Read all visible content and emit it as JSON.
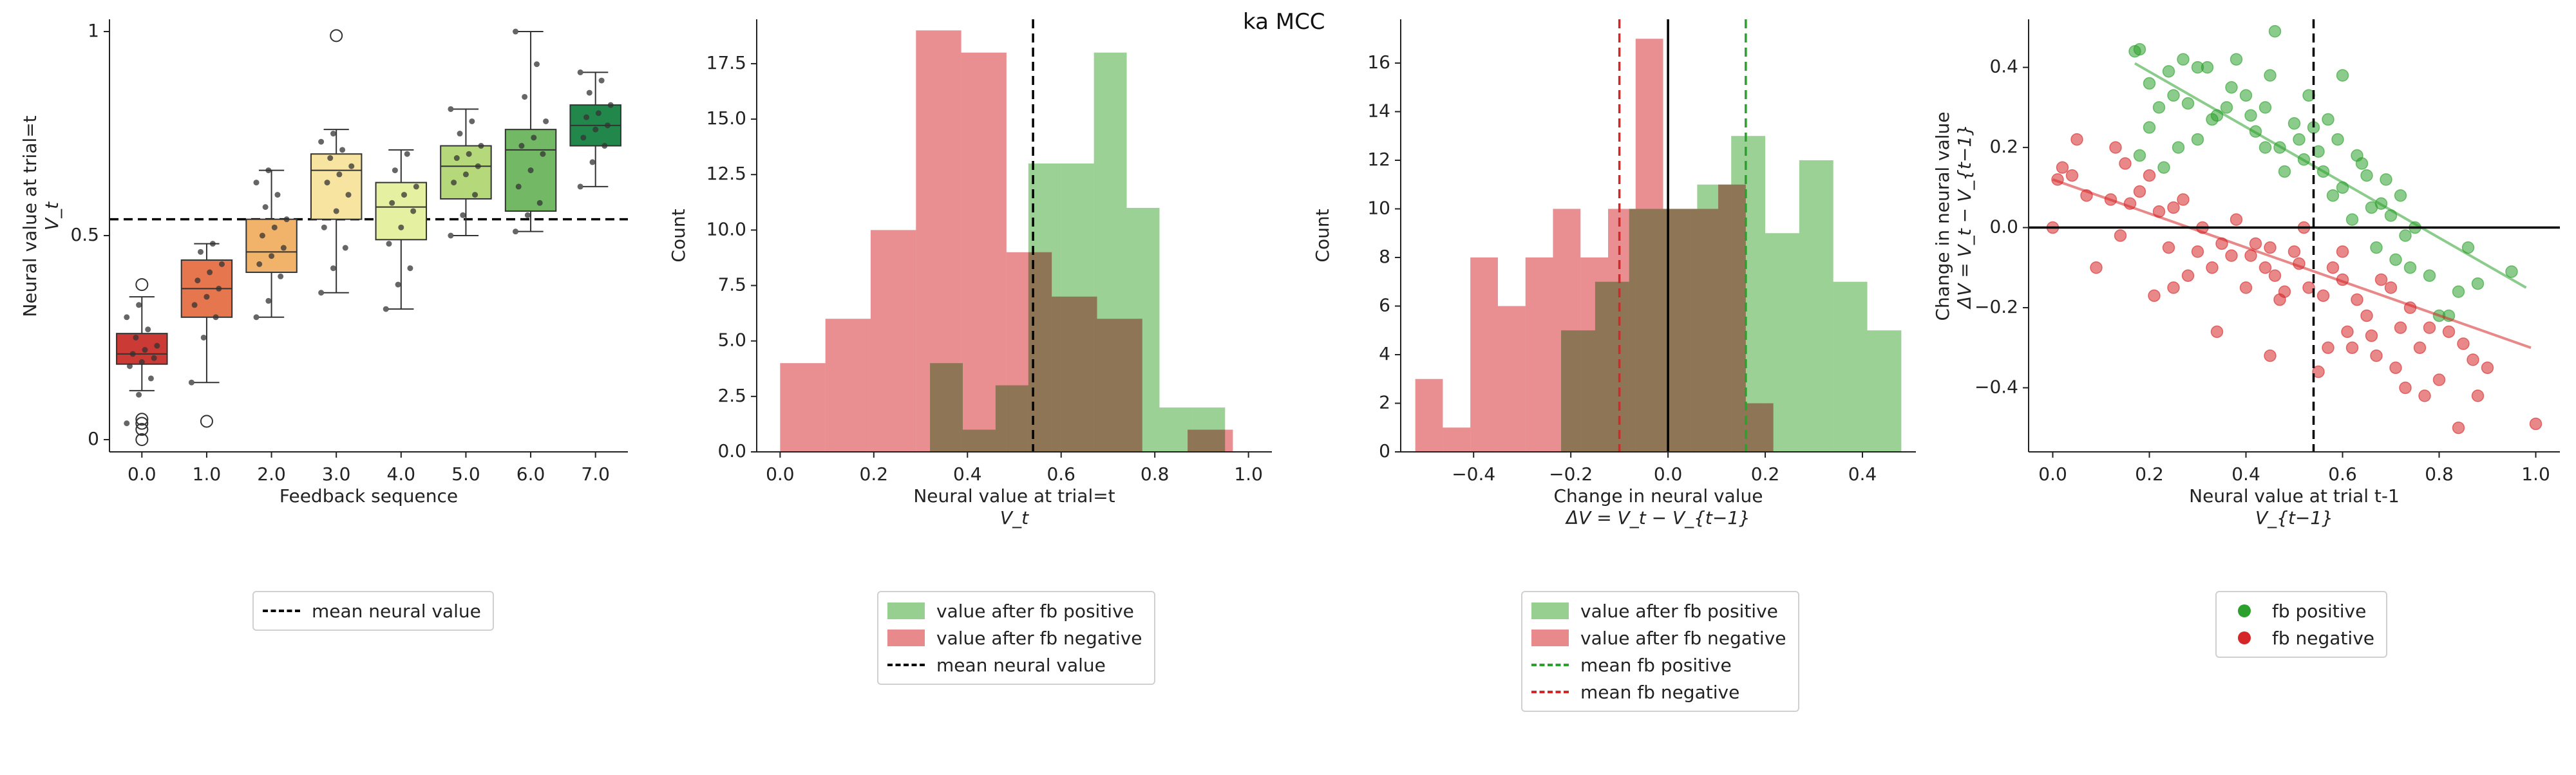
{
  "suptitle": "ka MCC",
  "mean_neural_value": 0.54,
  "colors": {
    "green": "#2ca02c",
    "red": "#d62728",
    "hist_green": "#96cf8f",
    "hist_red": "#e8898b",
    "hist_overlap": "#b5765e",
    "box_palette": [
      "#cb3a35",
      "#e6764d",
      "#f1b36a",
      "#f7e4a0",
      "#e5f0a0",
      "#b5d97a",
      "#73b864",
      "#22874b"
    ]
  },
  "chart_data": [
    {
      "type": "box",
      "title": "",
      "xlabel": "Feedback sequence",
      "ylabel": "Neural value at trial=t",
      "ylabel2": "V_t",
      "ylim": [
        -0.03,
        1.03
      ],
      "yticks": [
        0,
        0.5,
        1
      ],
      "ytick_labels": [
        "0",
        "0.5",
        "1"
      ],
      "categories": [
        "0.0",
        "1.0",
        "2.0",
        "3.0",
        "4.0",
        "5.0",
        "6.0",
        "7.0"
      ],
      "boxes": [
        {
          "q1": 0.185,
          "median": 0.21,
          "q3": 0.26,
          "whislo": 0.12,
          "whishi": 0.35,
          "fliers": [
            0.0,
            0.025,
            0.04,
            0.05,
            0.38
          ]
        },
        {
          "q1": 0.3,
          "median": 0.37,
          "q3": 0.44,
          "whislo": 0.14,
          "whishi": 0.48,
          "fliers": [
            0.045
          ]
        },
        {
          "q1": 0.41,
          "median": 0.46,
          "q3": 0.54,
          "whislo": 0.3,
          "whishi": 0.66,
          "fliers": []
        },
        {
          "q1": 0.54,
          "median": 0.66,
          "q3": 0.7,
          "whislo": 0.36,
          "whishi": 0.76,
          "fliers": [
            0.99
          ]
        },
        {
          "q1": 0.49,
          "median": 0.57,
          "q3": 0.63,
          "whislo": 0.32,
          "whishi": 0.71,
          "fliers": []
        },
        {
          "q1": 0.59,
          "median": 0.67,
          "q3": 0.72,
          "whislo": 0.5,
          "whishi": 0.81,
          "fliers": []
        },
        {
          "q1": 0.56,
          "median": 0.71,
          "q3": 0.76,
          "whislo": 0.51,
          "whishi": 1.0,
          "fliers": []
        },
        {
          "q1": 0.72,
          "median": 0.77,
          "q3": 0.82,
          "whislo": 0.62,
          "whishi": 0.9,
          "fliers": []
        }
      ],
      "points": [
        [
          0.04,
          0.11,
          0.15,
          0.18,
          0.19,
          0.2,
          0.21,
          0.22,
          0.23,
          0.25,
          0.27,
          0.3,
          0.33
        ],
        [
          0.14,
          0.25,
          0.3,
          0.33,
          0.35,
          0.37,
          0.39,
          0.41,
          0.43,
          0.46,
          0.48
        ],
        [
          0.3,
          0.34,
          0.4,
          0.43,
          0.45,
          0.47,
          0.5,
          0.52,
          0.54,
          0.57,
          0.6,
          0.63,
          0.66
        ],
        [
          0.36,
          0.42,
          0.47,
          0.52,
          0.56,
          0.6,
          0.63,
          0.65,
          0.67,
          0.69,
          0.71,
          0.73,
          0.75
        ],
        [
          0.32,
          0.38,
          0.42,
          0.48,
          0.52,
          0.56,
          0.58,
          0.6,
          0.62,
          0.66,
          0.7
        ],
        [
          0.5,
          0.55,
          0.6,
          0.63,
          0.65,
          0.67,
          0.69,
          0.7,
          0.72,
          0.75,
          0.78,
          0.81
        ],
        [
          0.51,
          0.55,
          0.58,
          0.62,
          0.66,
          0.7,
          0.72,
          0.74,
          0.78,
          0.84,
          0.92,
          1.0
        ],
        [
          0.62,
          0.68,
          0.72,
          0.74,
          0.76,
          0.77,
          0.79,
          0.8,
          0.82,
          0.85,
          0.88,
          0.9
        ]
      ],
      "legend": [
        {
          "label": "mean neural value",
          "style": "dashed",
          "color": "#000000"
        }
      ]
    },
    {
      "type": "histogram",
      "xlabel": "Neural value at trial=t",
      "xlabel2": "V_t",
      "ylabel": "Count",
      "xlim": [
        -0.05,
        1.05
      ],
      "ylim": [
        0,
        19.5
      ],
      "xticks": [
        0.0,
        0.2,
        0.4,
        0.6,
        0.8,
        1.0
      ],
      "xtick_labels": [
        "0.0",
        "0.2",
        "0.4",
        "0.6",
        "0.8",
        "1.0"
      ],
      "yticks": [
        0,
        2.5,
        5.0,
        7.5,
        10.0,
        12.5,
        15.0,
        17.5
      ],
      "ytick_labels": [
        "0.0",
        "2.5",
        "5.0",
        "7.5",
        "10.0",
        "12.5",
        "15.0",
        "17.5"
      ],
      "series": [
        {
          "name": "value after fb positive",
          "color": "#96cf8f",
          "bin_edges": [
            0.32,
            0.39,
            0.46,
            0.53,
            0.6,
            0.67,
            0.74,
            0.81,
            0.88,
            0.95
          ],
          "counts": [
            4,
            1,
            3,
            13,
            13,
            18,
            11,
            2,
            2
          ]
        },
        {
          "name": "value after fb negative",
          "color": "#e8898b",
          "bin_edges": [
            0.0,
            0.0967,
            0.1933,
            0.29,
            0.3867,
            0.4833,
            0.58,
            0.6767,
            0.7733,
            0.87,
            0.9667
          ],
          "counts": [
            4,
            6,
            10,
            19,
            18,
            9,
            7,
            6,
            0,
            1
          ]
        }
      ],
      "vlines": [
        {
          "x": 0.54,
          "label": "mean neural value",
          "style": "dashed",
          "color": "#000000"
        }
      ]
    },
    {
      "type": "histogram",
      "xlabel": "Change in neural value",
      "xlabel2": "ΔV = V_t − V_{t−1}",
      "ylabel": "Count",
      "xlim": [
        -0.55,
        0.51
      ],
      "ylim": [
        0,
        17.8
      ],
      "xticks": [
        -0.4,
        -0.2,
        0.0,
        0.2,
        0.4
      ],
      "xtick_labels": [
        "−0.4",
        "−0.2",
        "0.0",
        "0.2",
        "0.4"
      ],
      "yticks": [
        0,
        2,
        4,
        6,
        8,
        10,
        12,
        14,
        16
      ],
      "ytick_labels": [
        "0",
        "2",
        "4",
        "6",
        "8",
        "10",
        "12",
        "14",
        "16"
      ],
      "series": [
        {
          "name": "value after fb positive",
          "color": "#96cf8f",
          "bin_edges": [
            -0.22,
            -0.15,
            -0.08,
            -0.01,
            0.06,
            0.13,
            0.2,
            0.27,
            0.34,
            0.41,
            0.48
          ],
          "counts": [
            5,
            7,
            10,
            10,
            11,
            13,
            9,
            12,
            7,
            5
          ]
        },
        {
          "name": "value after fb negative",
          "color": "#e8898b",
          "bin_edges": [
            -0.52,
            -0.4633,
            -0.4067,
            -0.35,
            -0.2933,
            -0.2367,
            -0.18,
            -0.1233,
            -0.0667,
            -0.01,
            0.0467,
            0.1033,
            0.16,
            0.2167
          ],
          "counts": [
            3,
            1,
            8,
            6,
            8,
            10,
            8,
            10,
            17,
            10,
            10,
            11,
            2
          ]
        }
      ],
      "vlines": [
        {
          "x": 0.0,
          "style": "solid",
          "color": "#000000"
        },
        {
          "x": 0.16,
          "label": "mean fb positive",
          "style": "dashed",
          "color": "#2ca02c"
        },
        {
          "x": -0.1,
          "label": "mean fb negative",
          "style": "dashed",
          "color": "#d62728"
        }
      ]
    },
    {
      "type": "scatter",
      "xlabel": "Neural value at trial t-1",
      "xlabel2": "V_{t−1}",
      "ylabel": "Change in neural value",
      "ylabel2": "ΔV = V_t − V_{t−1}",
      "xlim": [
        -0.05,
        1.05
      ],
      "ylim": [
        -0.56,
        0.52
      ],
      "xticks": [
        0.0,
        0.2,
        0.4,
        0.6,
        0.8,
        1.0
      ],
      "xtick_labels": [
        "0.0",
        "0.2",
        "0.4",
        "0.6",
        "0.8",
        "1.0"
      ],
      "yticks": [
        -0.4,
        -0.2,
        0.0,
        0.2,
        0.4
      ],
      "ytick_labels": [
        "−0.4",
        "−0.2",
        "0.0",
        "0.2",
        "0.4"
      ],
      "hline": 0.0,
      "vline": 0.54,
      "series": [
        {
          "name": "fb positive",
          "color": "#2ca02c",
          "fit": {
            "x": [
              0.17,
              0.98
            ],
            "y": [
              0.41,
              -0.15
            ]
          },
          "points": [
            [
              0.17,
              0.44
            ],
            [
              0.18,
              0.445
            ],
            [
              0.2,
              0.36
            ],
            [
              0.22,
              0.3
            ],
            [
              0.24,
              0.39
            ],
            [
              0.25,
              0.33
            ],
            [
              0.27,
              0.42
            ],
            [
              0.28,
              0.31
            ],
            [
              0.3,
              0.4
            ],
            [
              0.3,
              0.22
            ],
            [
              0.32,
              0.4
            ],
            [
              0.34,
              0.28
            ],
            [
              0.36,
              0.3
            ],
            [
              0.37,
              0.35
            ],
            [
              0.38,
              0.42
            ],
            [
              0.4,
              0.33
            ],
            [
              0.41,
              0.28
            ],
            [
              0.42,
              0.24
            ],
            [
              0.44,
              0.3
            ],
            [
              0.45,
              0.38
            ],
            [
              0.46,
              0.49
            ],
            [
              0.47,
              0.2
            ],
            [
              0.48,
              0.14
            ],
            [
              0.5,
              0.26
            ],
            [
              0.51,
              0.22
            ],
            [
              0.52,
              0.17
            ],
            [
              0.53,
              0.33
            ],
            [
              0.55,
              0.19
            ],
            [
              0.56,
              0.14
            ],
            [
              0.57,
              0.27
            ],
            [
              0.58,
              0.08
            ],
            [
              0.59,
              0.22
            ],
            [
              0.6,
              0.38
            ],
            [
              0.6,
              0.1
            ],
            [
              0.62,
              0.02
            ],
            [
              0.64,
              0.16
            ],
            [
              0.65,
              0.13
            ],
            [
              0.66,
              0.05
            ],
            [
              0.67,
              -0.05
            ],
            [
              0.68,
              0.06
            ],
            [
              0.7,
              0.03
            ],
            [
              0.71,
              -0.08
            ],
            [
              0.72,
              0.08
            ],
            [
              0.73,
              -0.02
            ],
            [
              0.74,
              -0.1
            ],
            [
              0.75,
              0.0
            ],
            [
              0.78,
              -0.12
            ],
            [
              0.8,
              -0.22
            ],
            [
              0.82,
              -0.22
            ],
            [
              0.84,
              -0.16
            ],
            [
              0.86,
              -0.05
            ],
            [
              0.88,
              -0.14
            ],
            [
              0.2,
              0.25
            ],
            [
              0.23,
              0.15
            ],
            [
              0.26,
              0.2
            ],
            [
              0.33,
              0.27
            ],
            [
              0.44,
              0.2
            ],
            [
              0.54,
              0.25
            ],
            [
              0.63,
              0.18
            ],
            [
              0.69,
              0.12
            ],
            [
              0.95,
              -0.11
            ],
            [
              0.18,
              0.18
            ]
          ]
        },
        {
          "name": "fb negative",
          "color": "#d62728",
          "fit": {
            "x": [
              0.0,
              0.99
            ],
            "y": [
              0.12,
              -0.3
            ]
          },
          "points": [
            [
              0.0,
              0.0
            ],
            [
              0.01,
              0.12
            ],
            [
              0.02,
              0.15
            ],
            [
              0.04,
              0.13
            ],
            [
              0.05,
              0.22
            ],
            [
              0.07,
              0.08
            ],
            [
              0.09,
              -0.1
            ],
            [
              0.12,
              0.07
            ],
            [
              0.13,
              0.2
            ],
            [
              0.14,
              -0.02
            ],
            [
              0.15,
              0.16
            ],
            [
              0.16,
              0.06
            ],
            [
              0.18,
              0.09
            ],
            [
              0.2,
              0.13
            ],
            [
              0.21,
              -0.17
            ],
            [
              0.22,
              0.04
            ],
            [
              0.24,
              -0.05
            ],
            [
              0.25,
              0.05
            ],
            [
              0.27,
              0.07
            ],
            [
              0.28,
              -0.12
            ],
            [
              0.3,
              -0.06
            ],
            [
              0.31,
              0.0
            ],
            [
              0.33,
              -0.1
            ],
            [
              0.34,
              -0.26
            ],
            [
              0.35,
              -0.04
            ],
            [
              0.37,
              -0.07
            ],
            [
              0.38,
              0.02
            ],
            [
              0.4,
              -0.15
            ],
            [
              0.41,
              -0.07
            ],
            [
              0.42,
              -0.04
            ],
            [
              0.44,
              -0.1
            ],
            [
              0.45,
              -0.05
            ],
            [
              0.46,
              -0.12
            ],
            [
              0.47,
              -0.18
            ],
            [
              0.48,
              -0.16
            ],
            [
              0.5,
              -0.06
            ],
            [
              0.51,
              -0.09
            ],
            [
              0.52,
              0.0
            ],
            [
              0.53,
              -0.15
            ],
            [
              0.55,
              -0.36
            ],
            [
              0.56,
              -0.17
            ],
            [
              0.57,
              -0.3
            ],
            [
              0.58,
              -0.1
            ],
            [
              0.6,
              -0.13
            ],
            [
              0.61,
              -0.26
            ],
            [
              0.62,
              -0.3
            ],
            [
              0.63,
              -0.18
            ],
            [
              0.65,
              -0.22
            ],
            [
              0.66,
              -0.27
            ],
            [
              0.67,
              -0.32
            ],
            [
              0.68,
              -0.13
            ],
            [
              0.7,
              -0.15
            ],
            [
              0.71,
              -0.35
            ],
            [
              0.72,
              -0.25
            ],
            [
              0.73,
              -0.4
            ],
            [
              0.74,
              -0.2
            ],
            [
              0.76,
              -0.3
            ],
            [
              0.77,
              -0.42
            ],
            [
              0.78,
              -0.25
            ],
            [
              0.8,
              -0.38
            ],
            [
              0.82,
              -0.26
            ],
            [
              0.84,
              -0.5
            ],
            [
              0.85,
              -0.29
            ],
            [
              0.87,
              -0.33
            ],
            [
              0.88,
              -0.42
            ],
            [
              0.9,
              -0.35
            ],
            [
              1.0,
              -0.49
            ],
            [
              0.45,
              -0.32
            ],
            [
              0.6,
              -0.06
            ],
            [
              0.25,
              -0.15
            ]
          ]
        }
      ]
    }
  ]
}
